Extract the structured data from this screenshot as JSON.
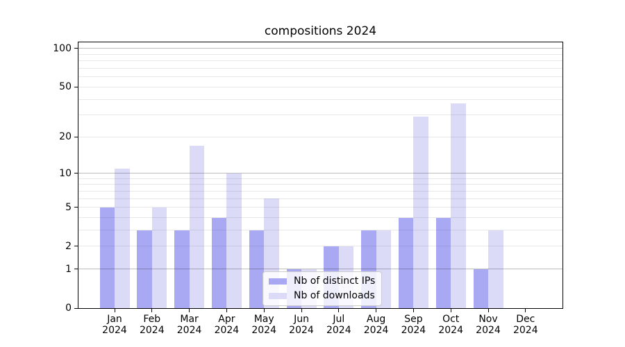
{
  "chart_data": {
    "type": "bar",
    "title": "compositions 2024",
    "categories": [
      "Jan",
      "Feb",
      "Mar",
      "Apr",
      "May",
      "Jun",
      "Jul",
      "Aug",
      "Sep",
      "Oct",
      "Nov",
      "Dec"
    ],
    "category_year": "2024",
    "series": [
      {
        "name": "Nb of distinct IPs",
        "color": "#a9a9f3",
        "values": [
          5,
          3,
          3,
          4,
          3,
          1,
          2,
          3,
          4,
          4,
          1,
          0
        ]
      },
      {
        "name": "Nb of downloads",
        "color": "#dbdbf8",
        "values": [
          11,
          5,
          17,
          10,
          6,
          1,
          2,
          3,
          29,
          37,
          3,
          0
        ]
      }
    ],
    "y_axis": {
      "scale": "log1p",
      "ylim": [
        0,
        112
      ],
      "major_ticks": [
        0,
        1,
        2,
        5,
        10,
        20,
        50,
        100
      ],
      "tick_labels": [
        "0",
        "1",
        "2",
        "5",
        "10",
        "20",
        "50",
        "100"
      ],
      "major_gridlines": [
        1,
        10,
        100
      ],
      "minor_gridlines": [
        2,
        3,
        4,
        5,
        6,
        7,
        8,
        9,
        20,
        30,
        40,
        50,
        60,
        70,
        80,
        90
      ]
    },
    "grid": true,
    "legend": {
      "position": "lower center",
      "entries": [
        "Nb of distinct IPs",
        "Nb of downloads"
      ]
    },
    "colors": {
      "axis": "#000000",
      "major_grid": "#bdbdbd",
      "minor_grid": "#e8e8e8",
      "legend_border": "#cccccc"
    }
  }
}
